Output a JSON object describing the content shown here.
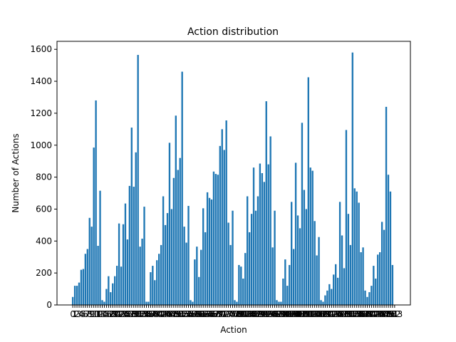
{
  "chart_data": {
    "type": "bar",
    "title": "Action distribution",
    "xlabel": "Action",
    "ylabel": "Number of Actions",
    "ylim": [
      0,
      1650
    ],
    "xlim": [
      -7.5,
      160.5
    ],
    "grid": false,
    "legend": "none",
    "bar_color": "#1f77b4",
    "yticks": [
      0,
      200,
      400,
      600,
      800,
      1000,
      1200,
      1400,
      1600
    ],
    "xtick_labels": [
      "0",
      "1",
      "2",
      "3",
      "4",
      "5",
      "6",
      "7",
      "8",
      "9",
      "10",
      "11",
      "12",
      "13",
      "14",
      "15",
      "16",
      "17",
      "18",
      "19",
      "20",
      "21",
      "22",
      "23",
      "24",
      "25",
      "26",
      "27",
      "28",
      "29",
      "30",
      "31",
      "32",
      "33",
      "34",
      "35",
      "36",
      "37",
      "38",
      "39",
      "40",
      "41",
      "42",
      "43",
      "44",
      "45",
      "46",
      "47",
      "48",
      "49",
      "50",
      "51",
      "52",
      "53",
      "54",
      "55",
      "56",
      "57",
      "58",
      "59",
      "60",
      "61",
      "62",
      "63",
      "64",
      "65",
      "66",
      "67",
      "68",
      "69",
      "70",
      "71",
      "72",
      "73",
      "74",
      "75",
      "76",
      "77",
      "78",
      "79",
      "80",
      "81",
      "82",
      "83",
      "84",
      "85",
      "86",
      "87",
      "88",
      "89",
      "90",
      "91",
      "92",
      "93",
      "94",
      "95",
      "96",
      "97",
      "98",
      "99",
      "100",
      "101",
      "102",
      "103",
      "104",
      "105",
      "106",
      "107",
      "108",
      "109",
      "110",
      "111",
      "112",
      "113",
      "114",
      "115",
      "116",
      "117",
      "118",
      "119",
      "120",
      "121",
      "122",
      "123",
      "124",
      "125",
      "126",
      "127",
      "128",
      "129",
      "130",
      "131",
      "132",
      "133",
      "134",
      "135",
      "136",
      "137",
      "138",
      "139",
      "140",
      "141",
      "142",
      "143",
      "144",
      "145",
      "146",
      "147",
      "148",
      "149",
      "150",
      "151",
      "152",
      "153"
    ],
    "values": [
      50,
      120,
      120,
      140,
      220,
      225,
      320,
      350,
      545,
      490,
      985,
      1280,
      370,
      715,
      30,
      20,
      100,
      180,
      80,
      135,
      180,
      245,
      510,
      240,
      505,
      635,
      410,
      745,
      1110,
      740,
      955,
      1565,
      365,
      415,
      615,
      20,
      20,
      205,
      245,
      155,
      280,
      320,
      375,
      680,
      500,
      575,
      1015,
      600,
      795,
      1185,
      845,
      920,
      1460,
      490,
      390,
      620,
      30,
      20,
      285,
      365,
      175,
      345,
      605,
      455,
      705,
      670,
      660,
      835,
      820,
      815,
      995,
      1100,
      970,
      1155,
      515,
      375,
      590,
      30,
      20,
      250,
      240,
      165,
      325,
      680,
      455,
      570,
      860,
      590,
      680,
      885,
      825,
      770,
      1275,
      880,
      1055,
      360,
      590,
      30,
      20,
      20,
      165,
      285,
      120,
      250,
      645,
      350,
      890,
      560,
      480,
      1140,
      720,
      600,
      1425,
      860,
      840,
      525,
      310,
      425,
      30,
      20,
      60,
      90,
      130,
      100,
      190,
      255,
      170,
      645,
      435,
      230,
      1095,
      570,
      375,
      1580,
      730,
      710,
      640,
      330,
      360,
      90,
      50,
      80,
      120,
      245,
      165,
      315,
      330,
      520,
      470,
      1240,
      815,
      710,
      250
    ]
  }
}
